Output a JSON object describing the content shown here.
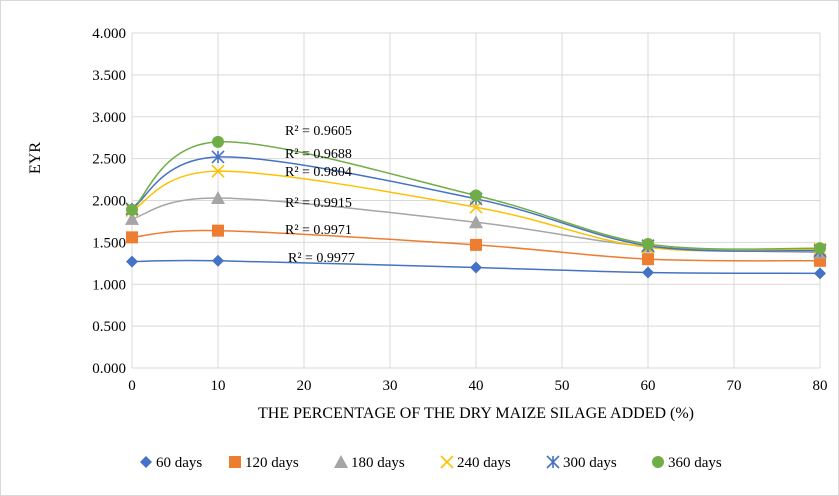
{
  "chart_data": {
    "type": "scatter",
    "xlabel": "THE PERCENTAGE OF THE DRY MAIZE SILAGE ADDED (%)",
    "ylabel": "EYR",
    "xlim": [
      0,
      80
    ],
    "ylim": [
      0,
      4
    ],
    "x_ticks": [
      "0",
      "10",
      "20",
      "30",
      "40",
      "50",
      "60",
      "70",
      "80"
    ],
    "y_ticks": [
      "0.000",
      "0.500",
      "1.000",
      "1.500",
      "2.000",
      "2.500",
      "3.000",
      "3.500",
      "4.000"
    ],
    "grid": true,
    "legend_position": "bottom",
    "x": [
      0,
      10,
      40,
      60,
      80
    ],
    "series": [
      {
        "name": "60 days",
        "marker": "diamond",
        "color": "#4472c4",
        "values": [
          1.27,
          1.28,
          1.2,
          1.14,
          1.13
        ],
        "r2": "R² = 0.9977"
      },
      {
        "name": "120 days",
        "marker": "square",
        "color": "#ed7d31",
        "values": [
          1.56,
          1.64,
          1.47,
          1.3,
          1.28
        ],
        "r2": "R² = 0.9971"
      },
      {
        "name": "180 days",
        "marker": "triangle",
        "color": "#a5a5a5",
        "values": [
          1.78,
          2.03,
          1.74,
          1.45,
          1.38
        ],
        "r2": "R² = 0.9915"
      },
      {
        "name": "240 days",
        "marker": "x",
        "color": "#ffc000",
        "values": [
          1.88,
          2.35,
          1.92,
          1.44,
          1.42
        ],
        "r2": "R² = 0.9804"
      },
      {
        "name": "300 days",
        "marker": "star",
        "color": "#4472c4",
        "values": [
          1.9,
          2.52,
          2.02,
          1.46,
          1.4
        ],
        "r2": "R² = 0.9688"
      },
      {
        "name": "360 days",
        "marker": "circle",
        "color": "#70ad47",
        "values": [
          1.89,
          2.7,
          2.06,
          1.48,
          1.43
        ],
        "r2": "R² = 0.9605"
      }
    ]
  }
}
